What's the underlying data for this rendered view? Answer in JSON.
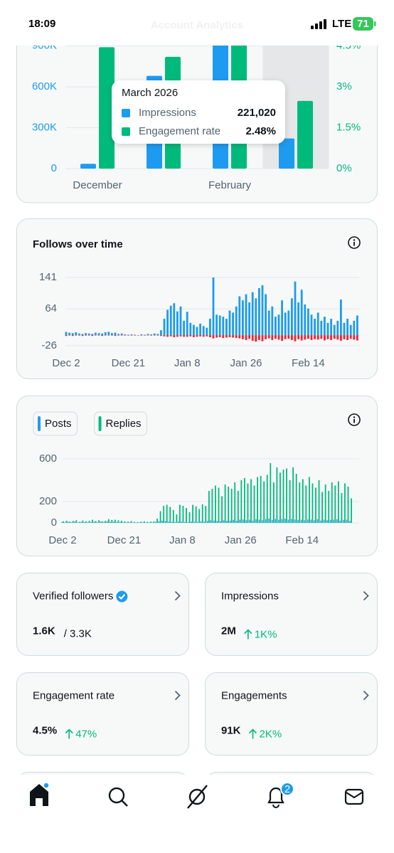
{
  "status": {
    "time": "18:09",
    "network": "LTE",
    "battery": "71"
  },
  "header": {
    "title": "Account Analytics"
  },
  "chart_data": [
    {
      "type": "bar",
      "categories": [
        "December",
        null,
        "February",
        null
      ],
      "series": [
        {
          "name": "Impressions",
          "color": "#1d9bf0",
          "values": [
            35000,
            680000,
            1000000,
            221020
          ],
          "value_labels": [
            null,
            null,
            null,
            "221,020"
          ]
        },
        {
          "name": "Engagement rate",
          "color": "#00ba7c",
          "axis": "y2",
          "values": [
            4.45,
            4.1,
            4.7,
            2.48
          ],
          "value_labels": [
            null,
            null,
            null,
            "2.48%"
          ]
        }
      ],
      "tooltip_title": "March 2026",
      "ylim": [
        0,
        900000
      ],
      "yticks": [
        0,
        {
          "value": 300000,
          "label": "300K"
        },
        {
          "value": 600000,
          "label": "600K"
        },
        {
          "value": 900000,
          "label": "900K"
        }
      ],
      "y2lim": [
        0,
        4.5
      ],
      "y2ticks": [
        {
          "value": 0,
          "label": "0%"
        },
        {
          "value": 1.5,
          "label": "1.5%"
        },
        {
          "value": 3,
          "label": "3%"
        },
        {
          "value": 4.5,
          "label": "4.5%"
        }
      ],
      "grid": true
    },
    {
      "type": "bar",
      "title": "Follows over time",
      "categories": [
        "Dec 2",
        null,
        null,
        null,
        null,
        null,
        null,
        null,
        null,
        null,
        null,
        null,
        null,
        null,
        null,
        null,
        null,
        null,
        null,
        "Dec 21",
        null,
        null,
        null,
        null,
        null,
        null,
        null,
        null,
        null,
        null,
        null,
        null,
        null,
        null,
        null,
        null,
        null,
        "Jan 8",
        null,
        null,
        null,
        null,
        null,
        null,
        null,
        null,
        null,
        null,
        null,
        null,
        null,
        null,
        null,
        null,
        null,
        "Jan 26",
        null,
        null,
        null,
        null,
        null,
        null,
        null,
        null,
        null,
        null,
        null,
        null,
        null,
        null,
        null,
        null,
        null,
        null,
        "Feb 14",
        null,
        null,
        null,
        null,
        null,
        null,
        null,
        null,
        null,
        null,
        null,
        null,
        null,
        null,
        null
      ],
      "series": [
        {
          "color": "#1d9bf0",
          "values": [
            8,
            6,
            5,
            7,
            4,
            3,
            5,
            4,
            3,
            6,
            5,
            4,
            7,
            8,
            5,
            6,
            3,
            4,
            2,
            1,
            2,
            1,
            0,
            2,
            1,
            3,
            2,
            4,
            3,
            12,
            40,
            62,
            72,
            78,
            58,
            70,
            35,
            57,
            30,
            25,
            20,
            28,
            22,
            18,
            40,
            141,
            50,
            48,
            45,
            40,
            60,
            55,
            70,
            95,
            85,
            100,
            80,
            105,
            90,
            115,
            122,
            100,
            60,
            70,
            45,
            50,
            85,
            55,
            60,
            90,
            131,
            80,
            111,
            75,
            65,
            50,
            40,
            55,
            35,
            45,
            30,
            40,
            25,
            35,
            87,
            30,
            40,
            25,
            35,
            48
          ]
        },
        {
          "color": "#f4212e",
          "values": [
            -2,
            -1,
            -2,
            -1,
            -1,
            -2,
            -1,
            -1,
            -2,
            -1,
            -1,
            -2,
            -1,
            -1,
            -1,
            -2,
            -1,
            -1,
            -1,
            -1,
            0,
            -1,
            0,
            -1,
            -1,
            0,
            -1,
            -1,
            -1,
            -2,
            -3,
            -4,
            -3,
            -5,
            -4,
            -3,
            -4,
            -4,
            -3,
            -5,
            -4,
            -3,
            -4,
            -3,
            -5,
            -8,
            -6,
            -5,
            -7,
            -6,
            -5,
            -6,
            -7,
            -8,
            -10,
            -12,
            -9,
            -14,
            -16,
            -12,
            -15,
            -10,
            -8,
            -12,
            -9,
            -11,
            -14,
            -10,
            -9,
            -12,
            -15,
            -10,
            -13,
            -11,
            -9,
            -12,
            -10,
            -11,
            -9,
            -13,
            -10,
            -12,
            -9,
            -11,
            -14,
            -10,
            -12,
            -9,
            -11,
            -13
          ]
        }
      ],
      "ylim": [
        -26,
        141
      ],
      "yticks": [
        -26,
        64,
        141
      ],
      "grid": true
    },
    {
      "type": "bar",
      "categories": [
        "Dec 2",
        null,
        null,
        null,
        null,
        null,
        null,
        null,
        null,
        null,
        null,
        null,
        null,
        null,
        null,
        null,
        null,
        null,
        null,
        "Dec 21",
        null,
        null,
        null,
        null,
        null,
        null,
        null,
        null,
        null,
        null,
        null,
        null,
        null,
        null,
        null,
        null,
        null,
        "Jan 8",
        null,
        null,
        null,
        null,
        null,
        null,
        null,
        null,
        null,
        null,
        null,
        null,
        null,
        null,
        null,
        null,
        null,
        "Jan 26",
        null,
        null,
        null,
        null,
        null,
        null,
        null,
        null,
        null,
        null,
        null,
        null,
        null,
        null,
        null,
        null,
        null,
        null,
        "Feb 14",
        null,
        null,
        null,
        null,
        null,
        null,
        null,
        null,
        null,
        null,
        null,
        null,
        null,
        null,
        null
      ],
      "series": [
        {
          "name": "Posts",
          "color": "#1d9bf0",
          "values": [
            8,
            5,
            10,
            6,
            12,
            4,
            9,
            7,
            5,
            8,
            10,
            6,
            12,
            8,
            15,
            10,
            12,
            9,
            8,
            5,
            4,
            6,
            3,
            2,
            4,
            5,
            3,
            4,
            5,
            10,
            15,
            20,
            18,
            12,
            10,
            8,
            15,
            12,
            10,
            8,
            14,
            12,
            10,
            15,
            12,
            20,
            25,
            22,
            18,
            15,
            25,
            20,
            22,
            28,
            20,
            30,
            32,
            25,
            30,
            22,
            35,
            30,
            25,
            35,
            40,
            28,
            38,
            30,
            35,
            40,
            30,
            38,
            32,
            28,
            30,
            25,
            32,
            30,
            25,
            35,
            22,
            30,
            25,
            28,
            30,
            35,
            22,
            28,
            30,
            20
          ]
        },
        {
          "name": "Replies",
          "color": "#00ba7c",
          "values": [
            15,
            20,
            12,
            18,
            25,
            10,
            22,
            15,
            20,
            30,
            18,
            25,
            15,
            20,
            35,
            28,
            30,
            25,
            20,
            15,
            12,
            18,
            10,
            8,
            12,
            15,
            10,
            12,
            14,
            40,
            110,
            160,
            170,
            150,
            120,
            80,
            170,
            160,
            140,
            100,
            170,
            155,
            130,
            175,
            160,
            300,
            320,
            350,
            330,
            250,
            360,
            340,
            320,
            380,
            300,
            400,
            420,
            370,
            410,
            350,
            430,
            440,
            390,
            450,
            560,
            380,
            520,
            470,
            500,
            510,
            400,
            520,
            460,
            380,
            410,
            350,
            430,
            370,
            330,
            400,
            290,
            360,
            300,
            380,
            350,
            390,
            280,
            370,
            340,
            230
          ]
        }
      ],
      "ylim": [
        0,
        600
      ],
      "yticks": [
        0,
        200,
        600
      ],
      "grid": true
    }
  ],
  "stats": [
    {
      "label": "Verified followers",
      "verified": true,
      "value": "1.6K",
      "sub": "/ 3.3K"
    },
    {
      "label": "Impressions",
      "value": "2M",
      "change": "1K%"
    },
    {
      "label": "Engagement rate",
      "value": "4.5%",
      "change": "47%"
    },
    {
      "label": "Engagements",
      "value": "91K",
      "change": "2K%"
    }
  ],
  "nav": {
    "notifications_badge": "2"
  }
}
